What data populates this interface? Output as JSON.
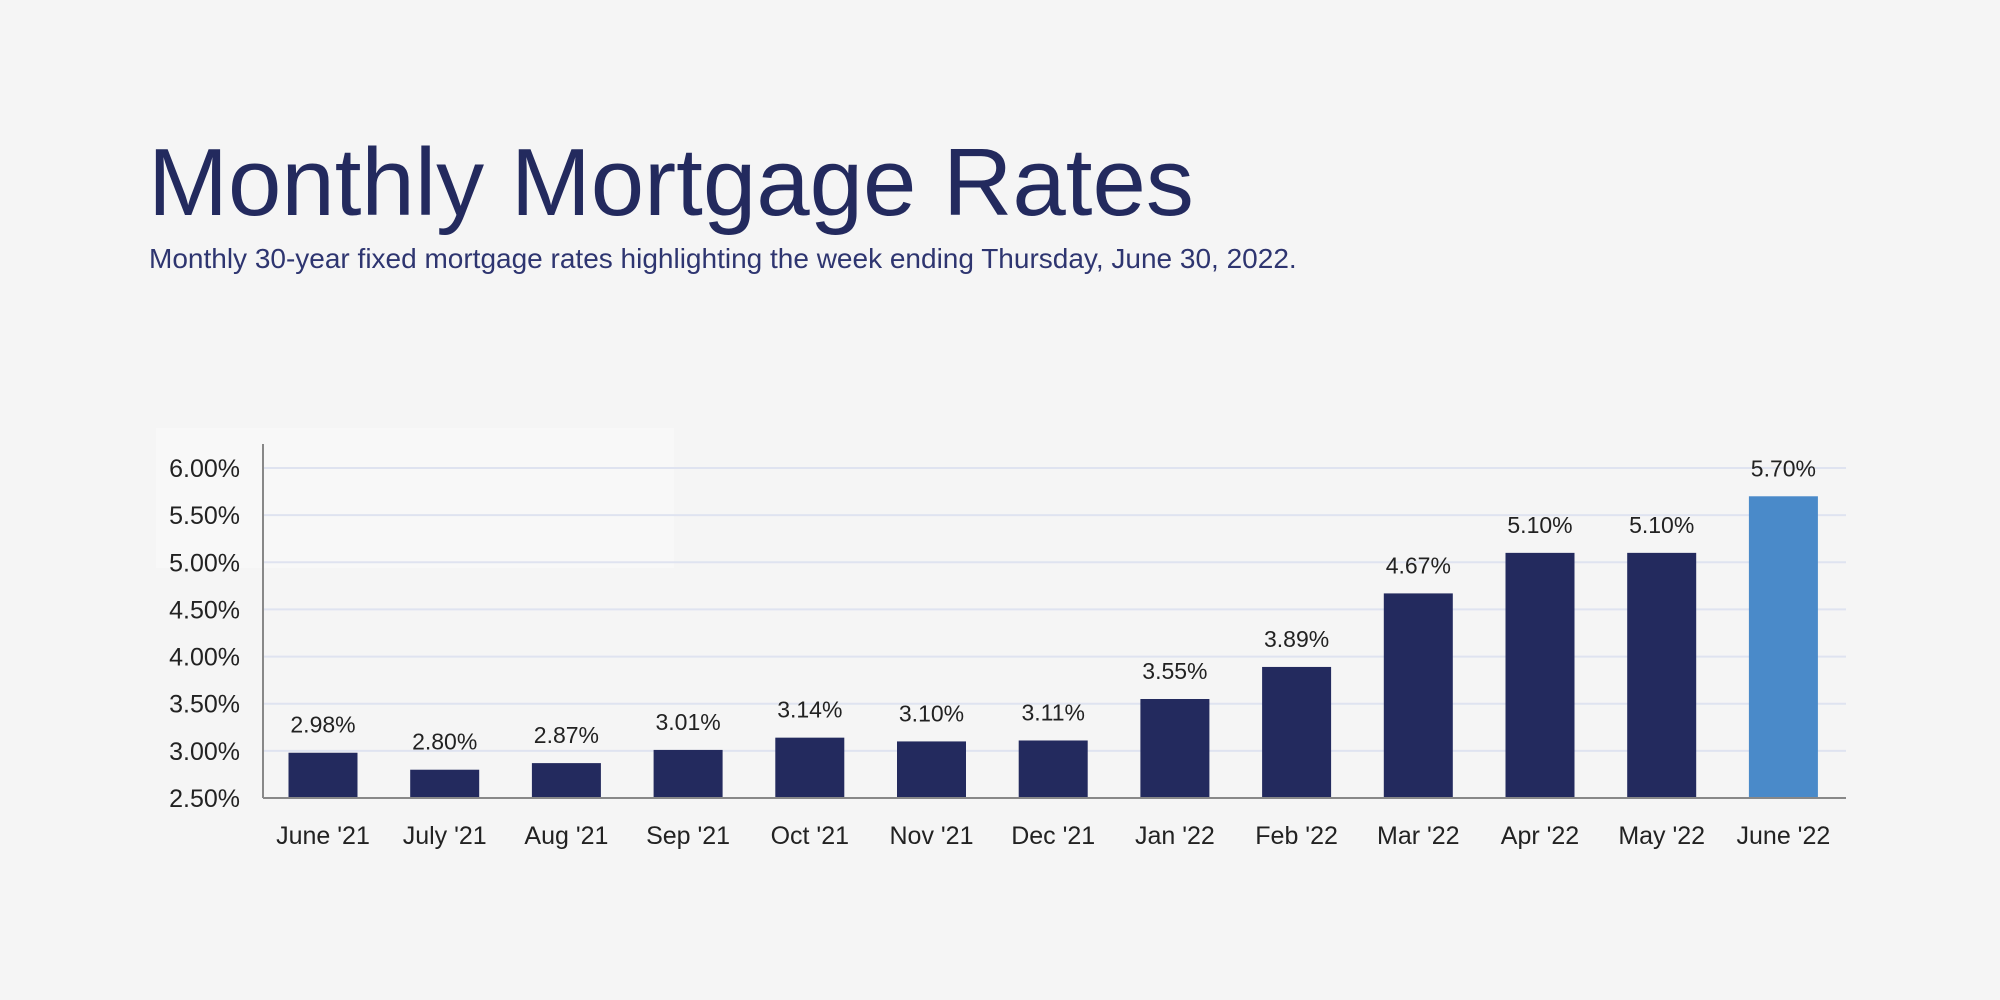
{
  "title": "Monthly Mortgage Rates",
  "subtitle": "Monthly 30-year fixed mortgage rates highlighting the week ending Thursday, June 30, 2022.",
  "chart_data": {
    "type": "bar",
    "title": "",
    "xlabel": "",
    "ylabel": "",
    "categories": [
      "June '21",
      "July '21",
      "Aug '21",
      "Sep '21",
      "Oct '21",
      "Nov '21",
      "Dec '21",
      "Jan '22",
      "Feb '22",
      "Mar '22",
      "Apr '22",
      "May '22",
      "June '22"
    ],
    "values": [
      2.98,
      2.8,
      2.87,
      3.01,
      3.14,
      3.1,
      3.11,
      3.55,
      3.89,
      4.67,
      5.1,
      5.1,
      5.7
    ],
    "data_labels": [
      "2.98%",
      "2.80%",
      "2.87%",
      "3.01%",
      "3.14%",
      "3.10%",
      "3.11%",
      "3.55%",
      "3.89%",
      "4.67%",
      "5.10%",
      "5.10%",
      "5.70%"
    ],
    "ylim": [
      2.5,
      6.0
    ],
    "yticks": [
      "2.50%",
      "3.00%",
      "3.50%",
      "4.00%",
      "4.50%",
      "5.00%",
      "5.50%",
      "6.00%"
    ],
    "grid": true,
    "colors": {
      "bar": "#232a5e",
      "highlight": "#4a8ac9",
      "grid": "#dfe3f0"
    },
    "highlight_index": 12
  }
}
